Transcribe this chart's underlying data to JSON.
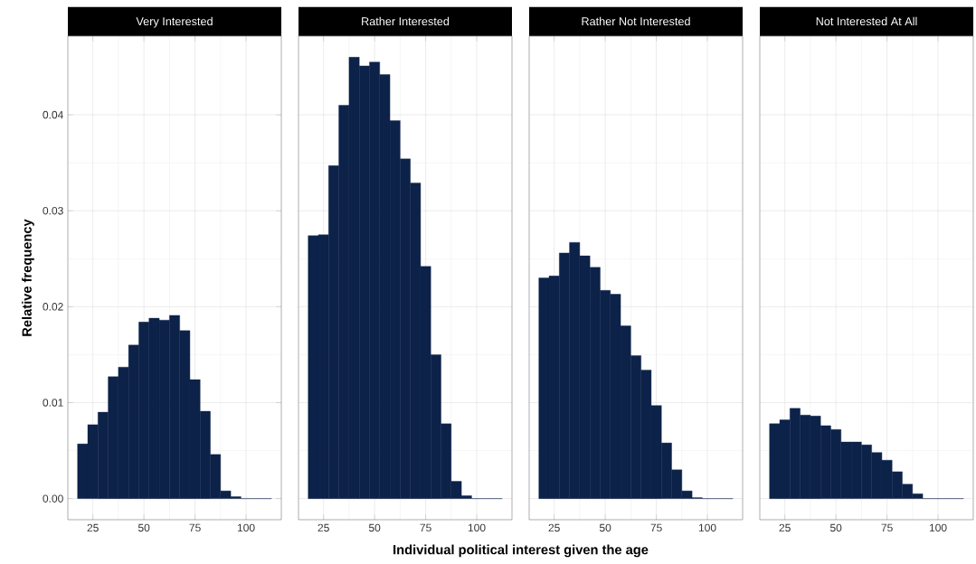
{
  "chart_data": [
    {
      "type": "histogram",
      "title": "Very Interested",
      "ylabel": "Relative frequency",
      "color": "#0c2249",
      "bins": [
        17.5,
        22.5,
        27.5,
        32.5,
        37.5,
        42.5,
        47.5,
        52.5,
        57.5,
        62.5,
        67.5,
        72.5,
        77.5,
        82.5,
        87.5,
        92.5,
        97.5,
        102.5,
        107.5,
        112.5
      ],
      "values": [
        0.0057,
        0.0077,
        0.009,
        0.0127,
        0.0137,
        0.016,
        0.0184,
        0.0188,
        0.0186,
        0.0191,
        0.0175,
        0.0124,
        0.0091,
        0.0046,
        0.0008,
        0.0002,
        0,
        0,
        0
      ],
      "xlim": [
        12.75,
        117.25
      ],
      "ylim": [
        -0.0022,
        0.0482
      ],
      "xticks": [
        25,
        50,
        75,
        100
      ],
      "yticks": [
        {
          "value": 0,
          "label": "0.00"
        },
        {
          "value": 0.01,
          "label": "0.01"
        },
        {
          "value": 0.02,
          "label": "0.02"
        },
        {
          "value": 0.03,
          "label": "0.03"
        },
        {
          "value": 0.04,
          "label": "0.04"
        }
      ],
      "grid": true
    },
    {
      "type": "histogram",
      "title": "Rather Interested",
      "xlabel": "Individual political interest given the age",
      "color": "#0c2249",
      "bins": [
        17.5,
        22.5,
        27.5,
        32.5,
        37.5,
        42.5,
        47.5,
        52.5,
        57.5,
        62.5,
        67.5,
        72.5,
        77.5,
        82.5,
        87.5,
        92.5,
        97.5,
        102.5,
        107.5,
        112.5
      ],
      "values": [
        0.0274,
        0.0275,
        0.0347,
        0.041,
        0.046,
        0.0451,
        0.0455,
        0.0442,
        0.0394,
        0.0354,
        0.0329,
        0.0242,
        0.015,
        0.0078,
        0.0018,
        0.0003,
        0,
        0,
        0
      ],
      "xlim": [
        12.75,
        117.25
      ],
      "ylim": [
        -0.0022,
        0.0482
      ],
      "xticks": [
        25,
        50,
        75,
        100
      ],
      "yticks": [
        {
          "value": 0,
          "label": null
        },
        {
          "value": 0.01,
          "label": null
        },
        {
          "value": 0.02,
          "label": null
        },
        {
          "value": 0.03,
          "label": null
        },
        {
          "value": 0.04,
          "label": null
        }
      ],
      "grid": true,
      "tick_labels": "x"
    },
    {
      "type": "histogram",
      "title": "Rather Not Interested",
      "color": "#0c2249",
      "bins": [
        17.5,
        22.5,
        27.5,
        32.5,
        37.5,
        42.5,
        47.5,
        52.5,
        57.5,
        62.5,
        67.5,
        72.5,
        77.5,
        82.5,
        87.5,
        92.5,
        97.5,
        102.5,
        107.5,
        112.5
      ],
      "values": [
        0.023,
        0.0232,
        0.0256,
        0.0267,
        0.0253,
        0.0241,
        0.0217,
        0.0213,
        0.018,
        0.0149,
        0.0134,
        0.0097,
        0.0058,
        0.003,
        0.0008,
        0.0001,
        0,
        0,
        0
      ],
      "xlim": [
        12.75,
        117.25
      ],
      "ylim": [
        -0.0022,
        0.0482
      ],
      "xticks": [
        25,
        50,
        75,
        100
      ],
      "yticks": [
        {
          "value": 0,
          "label": null
        },
        {
          "value": 0.01,
          "label": null
        },
        {
          "value": 0.02,
          "label": null
        },
        {
          "value": 0.03,
          "label": null
        },
        {
          "value": 0.04,
          "label": null
        }
      ],
      "grid": true,
      "tick_labels": "x"
    },
    {
      "type": "histogram",
      "title": "Not Interested At All",
      "color": "#0c2249",
      "bins": [
        17.5,
        22.5,
        27.5,
        32.5,
        37.5,
        42.5,
        47.5,
        52.5,
        57.5,
        62.5,
        67.5,
        72.5,
        77.5,
        82.5,
        87.5,
        92.5,
        97.5,
        102.5,
        107.5,
        112.5
      ],
      "values": [
        0.0078,
        0.0082,
        0.0094,
        0.0087,
        0.0086,
        0.0076,
        0.0072,
        0.0059,
        0.0059,
        0.0056,
        0.0048,
        0.004,
        0.0028,
        0.0015,
        0.0005,
        0,
        0,
        0,
        0
      ],
      "xlim": [
        12.75,
        117.25
      ],
      "ylim": [
        -0.0022,
        0.0482
      ],
      "xticks": [
        25,
        50,
        75,
        100
      ],
      "yticks": [
        {
          "value": 0,
          "label": null
        },
        {
          "value": 0.01,
          "label": null
        },
        {
          "value": 0.02,
          "label": null
        },
        {
          "value": 0.03,
          "label": null
        },
        {
          "value": 0.04,
          "label": null
        }
      ],
      "grid": true,
      "tick_labels": "x"
    }
  ]
}
